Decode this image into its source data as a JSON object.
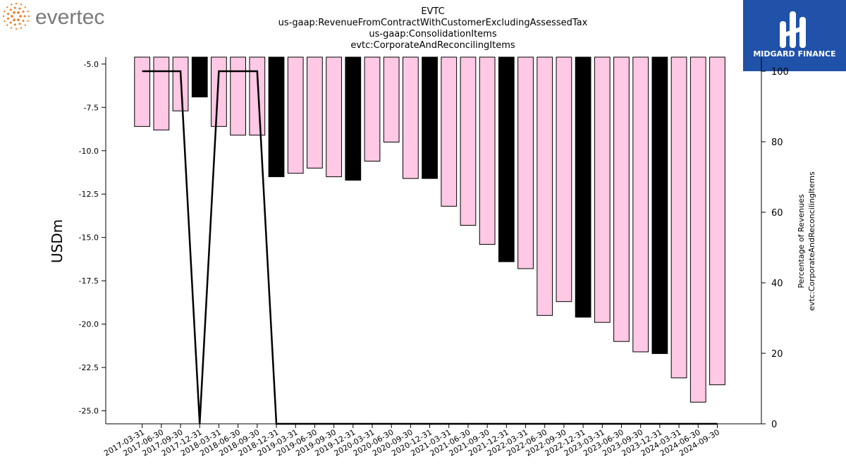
{
  "header": {
    "left_logo_text": "evertec",
    "right_logo_text": "MIDGARD FINANCE"
  },
  "colors": {
    "bar_pink": "#ffc8e4",
    "bar_black": "#000000",
    "logo_orange": "#f27a24",
    "logo_gray": "#7a7a7a",
    "logo_blue": "#1f52a8"
  },
  "chart_data": {
    "type": "bar",
    "title": [
      "EVTC",
      "us-gaap:RevenueFromContractWithCustomerExcludingAssessedTax",
      "us-gaap:ConsolidationItems",
      "evtc:CorporateAndReconcilingItems"
    ],
    "ylabel": "USDm",
    "y2label": [
      "Percentage of Revenues",
      "evtc:CorporateAndReconcilingItems"
    ],
    "ylim": [
      -25.75,
      -4.6
    ],
    "y2lim": [
      0,
      104
    ],
    "yticks": [
      -5.0,
      -7.5,
      -10.0,
      -12.5,
      -15.0,
      -17.5,
      -20.0,
      -22.5,
      -25.0
    ],
    "y2ticks": [
      0,
      20,
      40,
      60,
      80,
      100
    ],
    "categories": [
      "2017-03-31",
      "2017-06-30",
      "2017-09-30",
      "2017-12-31",
      "2018-03-31",
      "2018-06-30",
      "2018-09-30",
      "2018-12-31",
      "2019-03-31",
      "2019-06-30",
      "2019-09-30",
      "2019-12-31",
      "2020-03-31",
      "2020-06-30",
      "2020-09-30",
      "2020-12-31",
      "2021-03-31",
      "2021-06-30",
      "2021-09-30",
      "2021-12-31",
      "2022-03-31",
      "2022-06-30",
      "2022-09-30",
      "2022-12-31",
      "2023-03-31",
      "2023-06-30",
      "2023-09-30",
      "2023-12-31",
      "2024-03-31",
      "2024-06-30",
      "2024-09-30"
    ],
    "series": [
      {
        "type": "bar",
        "values": [
          -8.6,
          -8.8,
          -7.7,
          -6.9,
          -8.6,
          -9.1,
          -9.1,
          -11.5,
          -11.3,
          -11.0,
          -11.5,
          -11.7,
          -10.6,
          -9.5,
          -11.6,
          -11.6,
          -13.2,
          -14.3,
          -15.4,
          -16.4,
          -16.8,
          -19.5,
          -18.7,
          -19.6,
          -19.9,
          -21.0,
          -21.6,
          -21.7,
          -23.1,
          -24.5,
          -23.5
        ],
        "highlight": [
          false,
          false,
          false,
          true,
          false,
          false,
          false,
          true,
          false,
          false,
          false,
          true,
          false,
          false,
          false,
          true,
          false,
          false,
          false,
          true,
          false,
          false,
          false,
          true,
          false,
          false,
          false,
          true,
          false,
          false,
          false
        ]
      },
      {
        "type": "line",
        "axis": "right",
        "values": [
          100,
          100,
          100,
          0,
          100,
          100,
          100,
          0,
          0,
          0,
          0,
          0,
          0,
          0,
          0,
          0,
          0,
          0,
          0,
          0,
          0,
          0,
          0,
          0,
          0,
          0,
          0,
          0,
          0,
          0,
          0
        ]
      }
    ]
  }
}
